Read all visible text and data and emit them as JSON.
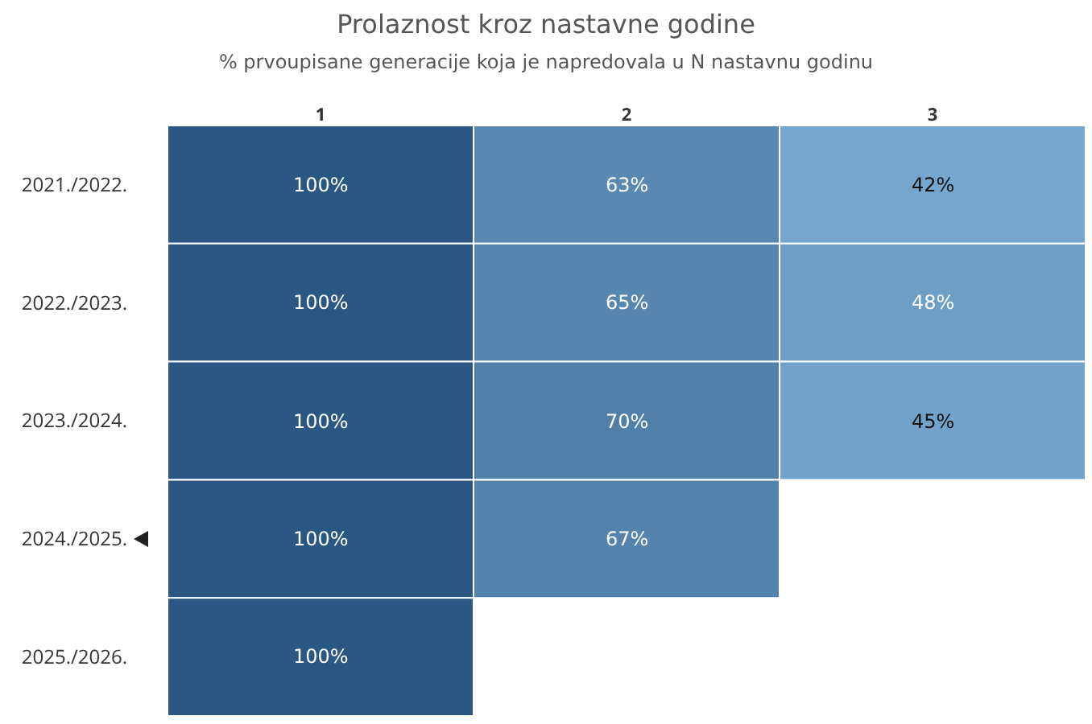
{
  "chart_data": {
    "type": "heatmap",
    "title": "Prolaznost kroz nastavne godine",
    "subtitle": "% prvoupisane generacije koja je napredovala u N nastavnu godinu",
    "categories": [
      "1",
      "2",
      "3"
    ],
    "y_categories": [
      "2021./2022.",
      "2022./2023.",
      "2023./2024.",
      "2024./2025.",
      "2025./2026."
    ],
    "cells": [
      [
        100,
        63,
        42
      ],
      [
        100,
        65,
        48
      ],
      [
        100,
        70,
        45
      ],
      [
        100,
        67,
        null
      ],
      [
        100,
        null,
        null
      ]
    ],
    "cell_labels": [
      [
        "100%",
        "63%",
        "42%"
      ],
      [
        "100%",
        "65%",
        "48%"
      ],
      [
        "100%",
        "70%",
        "45%"
      ],
      [
        "100%",
        "67%",
        null
      ],
      [
        "100%",
        null,
        null
      ]
    ]
  }
}
